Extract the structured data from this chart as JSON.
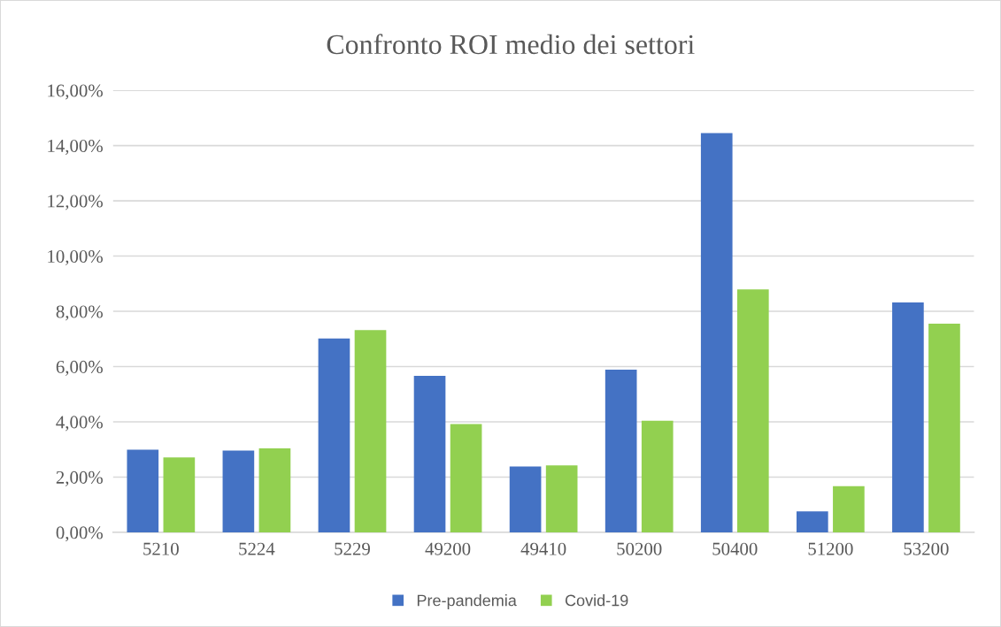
{
  "chart_data": {
    "type": "bar",
    "title": "Confronto ROI medio dei settori",
    "categories": [
      "5210",
      "5224",
      "5229",
      "49200",
      "49410",
      "50200",
      "50400",
      "51200",
      "53200"
    ],
    "series": [
      {
        "name": "Pre-pandemia",
        "color": "#4472c4",
        "values": [
          2.99,
          2.96,
          7.02,
          5.66,
          2.38,
          5.89,
          14.45,
          0.76,
          8.32
        ]
      },
      {
        "name": "Covid-19",
        "color": "#92d050",
        "values": [
          2.71,
          3.04,
          7.32,
          3.92,
          2.42,
          4.04,
          8.79,
          1.67,
          7.55
        ]
      }
    ],
    "ylim": [
      0,
      16
    ],
    "yticks": [
      {
        "value": 0,
        "label": "0,00%"
      },
      {
        "value": 2,
        "label": "2,00%"
      },
      {
        "value": 4,
        "label": "4,00%"
      },
      {
        "value": 6,
        "label": "6,00%"
      },
      {
        "value": 8,
        "label": "8,00%"
      },
      {
        "value": 10,
        "label": "10,00%"
      },
      {
        "value": 12,
        "label": "12,00%"
      },
      {
        "value": 14,
        "label": "14,00%"
      },
      {
        "value": 16,
        "label": "16,00%"
      }
    ],
    "grid": "y",
    "legend": "bottom"
  }
}
